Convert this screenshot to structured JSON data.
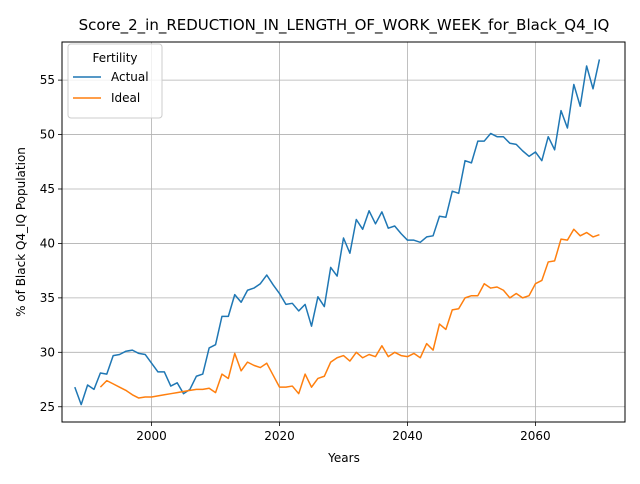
{
  "chart_data": {
    "type": "line",
    "title": "Score_2_in_REDUCTION_IN_LENGTH_OF_WORK_WEEK_for_Black_Q4_IQ",
    "xlabel": "Years",
    "ylabel": "% of Black Q4_IQ Population",
    "xlim": [
      1986,
      2074
    ],
    "ylim": [
      23.6,
      58.5
    ],
    "xticks": [
      2000,
      2020,
      2040,
      2060
    ],
    "yticks": [
      25,
      30,
      35,
      40,
      45,
      50,
      55
    ],
    "grid": true,
    "legend": {
      "title": "Fertility",
      "position": "top-left"
    },
    "x": [
      1988,
      1989,
      1990,
      1991,
      1992,
      1993,
      1994,
      1995,
      1996,
      1997,
      1998,
      1999,
      2000,
      2001,
      2002,
      2003,
      2004,
      2005,
      2006,
      2007,
      2008,
      2009,
      2010,
      2011,
      2012,
      2013,
      2014,
      2015,
      2016,
      2017,
      2018,
      2019,
      2020,
      2021,
      2022,
      2023,
      2024,
      2025,
      2026,
      2027,
      2028,
      2029,
      2030,
      2031,
      2032,
      2033,
      2034,
      2035,
      2036,
      2037,
      2038,
      2039,
      2040,
      2041,
      2042,
      2043,
      2044,
      2045,
      2046,
      2047,
      2048,
      2049,
      2050,
      2051,
      2052,
      2053,
      2054,
      2055,
      2056,
      2057,
      2058,
      2059,
      2060,
      2061,
      2062,
      2063,
      2064,
      2065,
      2066,
      2067,
      2068,
      2069,
      2070
    ],
    "series": [
      {
        "name": "Actual",
        "color": "#1f77b4",
        "values": [
          26.8,
          25.2,
          27.0,
          26.6,
          28.1,
          28.0,
          29.7,
          29.8,
          30.1,
          30.2,
          29.9,
          29.8,
          29.0,
          28.2,
          28.2,
          26.9,
          27.2,
          26.2,
          26.6,
          27.8,
          28.0,
          30.4,
          30.7,
          33.3,
          33.3,
          35.3,
          34.6,
          35.7,
          35.9,
          36.3,
          37.1,
          36.2,
          35.4,
          34.4,
          34.5,
          33.8,
          34.4,
          32.4,
          35.1,
          34.2,
          37.8,
          37.0,
          40.5,
          39.1,
          42.2,
          41.3,
          43.0,
          41.8,
          42.9,
          41.4,
          41.6,
          40.9,
          40.3,
          40.3,
          40.1,
          40.6,
          40.7,
          42.5,
          42.4,
          44.8,
          44.6,
          47.6,
          47.4,
          49.4,
          49.4,
          50.1,
          49.8,
          49.8,
          49.2,
          49.1,
          48.5,
          48.0,
          48.4,
          47.6,
          49.8,
          48.6,
          52.2,
          50.6,
          54.6,
          52.6,
          56.3,
          54.2,
          56.9
        ]
      },
      {
        "name": "Ideal",
        "color": "#ff7f0e",
        "values": [
          null,
          null,
          null,
          null,
          26.8,
          27.4,
          27.1,
          26.8,
          26.5,
          26.1,
          25.8,
          25.9,
          25.9,
          26.0,
          26.1,
          26.2,
          26.3,
          26.4,
          26.5,
          26.6,
          26.6,
          26.7,
          26.3,
          28.0,
          27.6,
          29.9,
          28.3,
          29.1,
          28.8,
          28.6,
          29.0,
          27.9,
          26.8,
          26.8,
          26.9,
          26.2,
          28.0,
          26.8,
          27.6,
          27.8,
          29.1,
          29.5,
          29.7,
          29.2,
          30.0,
          29.5,
          29.8,
          29.6,
          30.6,
          29.6,
          30.0,
          29.7,
          29.6,
          29.9,
          29.5,
          30.8,
          30.2,
          32.6,
          32.1,
          33.9,
          34.0,
          35.0,
          35.2,
          35.2,
          36.3,
          35.9,
          36.0,
          35.7,
          35.0,
          35.4,
          35.0,
          35.2,
          36.3,
          36.6,
          38.3,
          38.4,
          40.4,
          40.3,
          41.3,
          40.7,
          41.0,
          40.6,
          40.8
        ]
      }
    ]
  }
}
